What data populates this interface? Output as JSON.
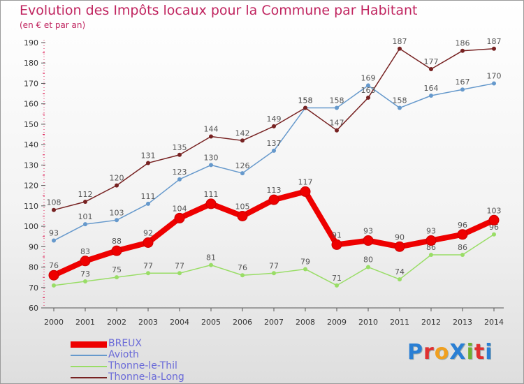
{
  "header": {
    "title": "Evolution des Impôts locaux pour la Commune par Habitant",
    "subtitle": "(en € et par an)"
  },
  "brand": {
    "text": "ProXiti",
    "letter_colors": [
      "#2a7fd4",
      "#e03030",
      "#f0a020",
      "#2a7fd4",
      "#70b030",
      "#e03030",
      "#2a7fd4"
    ]
  },
  "chart_data": {
    "type": "line",
    "title": "Evolution des Impôts locaux pour la Commune par Habitant",
    "ylabel": "(en € et par an)",
    "xlabel": "",
    "x": [
      "2000",
      "2001",
      "2002",
      "2003",
      "2004",
      "2005",
      "2006",
      "2007",
      "2008",
      "2009",
      "2010",
      "2011",
      "2012",
      "2013",
      "2014"
    ],
    "ylim": [
      60,
      190
    ],
    "yticks": [
      60,
      70,
      80,
      90,
      100,
      110,
      120,
      130,
      140,
      150,
      160,
      170,
      180,
      190
    ],
    "grid": false,
    "legend_position": "bottom-left",
    "series": [
      {
        "name": "Thonne-le-Thil",
        "color": "#99dd66",
        "values": [
          71,
          73,
          75,
          77,
          77,
          81,
          76,
          77,
          79,
          71,
          80,
          74,
          86,
          86,
          96
        ]
      },
      {
        "name": "Avioth",
        "color": "#6699cc",
        "values": [
          93,
          101,
          103,
          111,
          123,
          130,
          126,
          137,
          158,
          158,
          169,
          158,
          164,
          167,
          170
        ]
      },
      {
        "name": "Thonne-la-Long",
        "color": "#772222",
        "values": [
          108,
          112,
          120,
          131,
          135,
          144,
          142,
          149,
          158,
          147,
          163,
          187,
          177,
          186,
          187
        ]
      },
      {
        "name": "BREUX",
        "color": "#ee0000",
        "values": [
          76,
          83,
          88,
          92,
          104,
          111,
          105,
          113,
          117,
          91,
          93,
          90,
          93,
          96,
          103
        ]
      }
    ],
    "legend_order": [
      "BREUX",
      "Avioth",
      "Thonne-le-Thil",
      "Thonne-la-Long"
    ],
    "data_labels": {
      "Thonne-le-Thil": [
        null,
        "73",
        "75",
        "77",
        "77",
        "81",
        "76",
        "77",
        "79",
        "71",
        "80",
        "74",
        "86",
        "86",
        "96"
      ],
      "Avioth": [
        "93",
        "101",
        "103",
        "111",
        "123",
        "130",
        "126",
        "137",
        "158",
        "158",
        "169",
        "158",
        "164",
        "167",
        "170"
      ],
      "Thonne-la-Long": [
        "108",
        "112",
        "120",
        "131",
        "135",
        "144",
        "142",
        "149",
        "158",
        "147",
        "163",
        "187",
        "177",
        "186",
        "187"
      ],
      "BREUX": [
        "76",
        "83",
        "88",
        "92",
        "104",
        "111",
        "105",
        "113",
        "117",
        "91",
        "93",
        "90",
        "93",
        "96",
        "103"
      ]
    }
  }
}
